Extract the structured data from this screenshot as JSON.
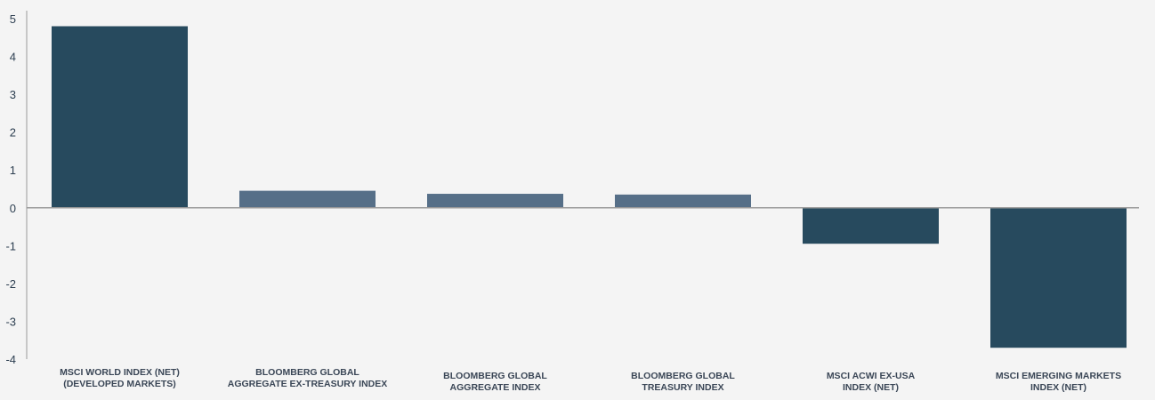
{
  "chart_data": {
    "type": "bar",
    "title": "",
    "xlabel": "",
    "ylabel": "",
    "ylim": [
      -4,
      5
    ],
    "yticks": [
      5,
      4,
      3,
      2,
      1,
      0,
      -1,
      -2,
      -3,
      -4
    ],
    "ytick_labels": [
      "5",
      "4",
      "3",
      "2",
      "1",
      "0",
      "-1",
      "-2",
      "-3",
      "-4"
    ],
    "grid": false,
    "categories": [
      [
        "MSCI WORLD INDEX (NET)",
        "(DEVELOPED MARKETS)"
      ],
      [
        "BLOOMBERG GLOBAL",
        "AGGREGATE EX-TREASURY INDEX"
      ],
      [
        "BLOOMBERG GLOBAL",
        "AGGREGATE INDEX"
      ],
      [
        "BLOOMBERG GLOBAL",
        "TREASURY INDEX"
      ],
      [
        "MSCI ACWI EX-USA",
        "INDEX (NET)"
      ],
      [
        "MSCI EMERGING MARKETS",
        "INDEX (NET)"
      ]
    ],
    "values": [
      4.8,
      0.45,
      0.37,
      0.35,
      -0.95,
      -3.7
    ],
    "bar_colors": [
      "#274a5e",
      "#566f88",
      "#566f88",
      "#566f88",
      "#274a5e",
      "#274a5e"
    ],
    "axis_color": "#9a9a9a"
  }
}
